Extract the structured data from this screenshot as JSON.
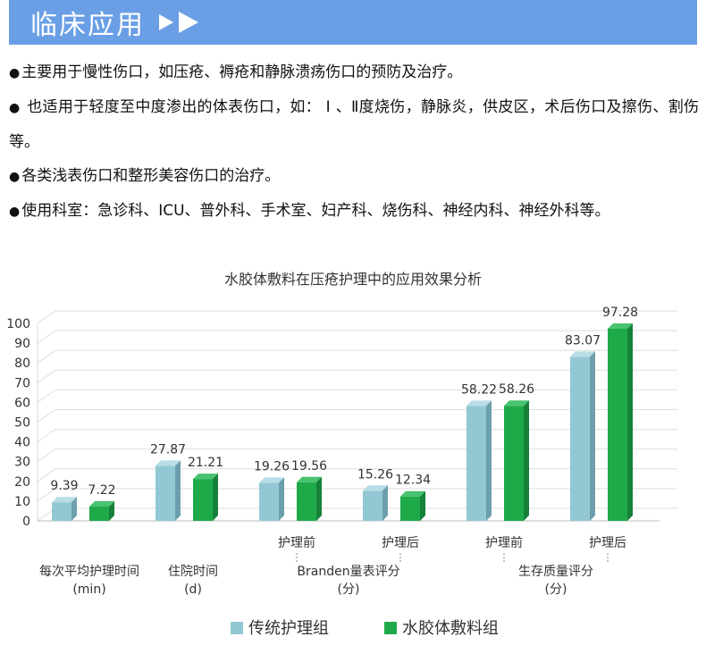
{
  "banner": {
    "title": "临床应用"
  },
  "bullets": [
    "主要用于慢性伤口，如压疮、褥疮和静脉溃疡伤口的预防及治疗。",
    " 也适用于轻度至中度渗出的体表伤口，如： Ⅰ 、Ⅱ度烧伤，静脉炎，供皮区，术后伤口及擦伤、割伤等。",
    "各类浅表伤口和整形美容伤口的治疗。",
    "使用科室：急诊科、ICU、普外科、手术室、妇产科、烧伤科、神经内科、神经外科等。"
  ],
  "colors": {
    "banner": "#6a9fe6",
    "series1": "#92c8d4",
    "series2": "#1faa4a"
  },
  "chart_data": {
    "type": "bar",
    "title": "水胶体敷料在压疮护理中的应用效果分析",
    "ylim": [
      0,
      100
    ],
    "yticks": [
      0,
      10,
      20,
      30,
      40,
      50,
      60,
      70,
      80,
      90,
      100
    ],
    "grid": true,
    "legend_position": "bottom",
    "categories": [
      {
        "sub": "",
        "group": "每次平均护理时间",
        "unit": "(min)"
      },
      {
        "sub": "",
        "group": "住院时间",
        "unit": "(d)"
      },
      {
        "sub": "护理前",
        "group": "Branden量表评分",
        "unit": "(分)"
      },
      {
        "sub": "护理后",
        "group": "",
        "unit": ""
      },
      {
        "sub": "护理前",
        "group": "生存质量评分",
        "unit": "(分)"
      },
      {
        "sub": "护理后",
        "group": "",
        "unit": ""
      }
    ],
    "series": [
      {
        "name": "传统护理组",
        "values": [
          9.39,
          27.87,
          19.26,
          15.26,
          58.22,
          83.07
        ]
      },
      {
        "name": "水胶体敷料组",
        "values": [
          7.22,
          21.21,
          19.56,
          12.34,
          58.26,
          97.28
        ]
      }
    ]
  }
}
